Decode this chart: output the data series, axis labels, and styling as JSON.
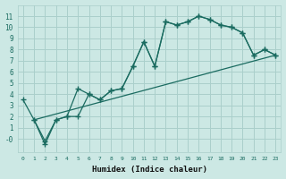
{
  "xlabel": "Humidex (Indice chaleur)",
  "bg_color": "#cce8e4",
  "grid_color": "#aacfcb",
  "line_color": "#1a6b60",
  "xlim": [
    -0.5,
    23.5
  ],
  "ylim": [
    -1.2,
    12
  ],
  "xticks": [
    0,
    1,
    2,
    3,
    4,
    5,
    6,
    7,
    8,
    9,
    10,
    11,
    12,
    13,
    14,
    15,
    16,
    17,
    18,
    19,
    20,
    21,
    22,
    23
  ],
  "yticks": [
    0,
    1,
    2,
    3,
    4,
    5,
    6,
    7,
    8,
    9,
    10,
    11
  ],
  "ytick_labels": [
    "-0",
    "1",
    "2",
    "3",
    "4",
    "5",
    "6",
    "7",
    "8",
    "9",
    "10",
    "11"
  ],
  "curve1_x": [
    0,
    1,
    2,
    3,
    4,
    5,
    6,
    7,
    8,
    9,
    10,
    11,
    12,
    13,
    14,
    15,
    16,
    17,
    18,
    19,
    20,
    21,
    22,
    23
  ],
  "curve1_y": [
    3.5,
    1.7,
    -0.2,
    1.7,
    2.0,
    4.5,
    4.0,
    3.5,
    4.3,
    4.5,
    6.5,
    8.7,
    6.5,
    10.5,
    10.2,
    10.5,
    11.0,
    10.7,
    10.2,
    10.0,
    9.5,
    7.5,
    8.0,
    7.5
  ],
  "curve2_x": [
    1,
    2,
    3,
    4,
    5,
    6,
    7,
    8,
    9,
    10,
    11,
    12,
    13,
    14,
    15,
    16,
    17,
    18,
    19,
    20,
    21,
    22,
    23
  ],
  "curve2_y": [
    1.7,
    -0.5,
    1.7,
    2.0,
    2.0,
    4.0,
    3.5,
    4.3,
    4.5,
    6.5,
    8.7,
    6.5,
    10.5,
    10.2,
    10.5,
    11.0,
    10.7,
    10.2,
    10.0,
    9.5,
    7.5,
    8.0,
    7.5
  ],
  "line3_x": [
    1,
    23
  ],
  "line3_y": [
    1.7,
    7.5
  ]
}
